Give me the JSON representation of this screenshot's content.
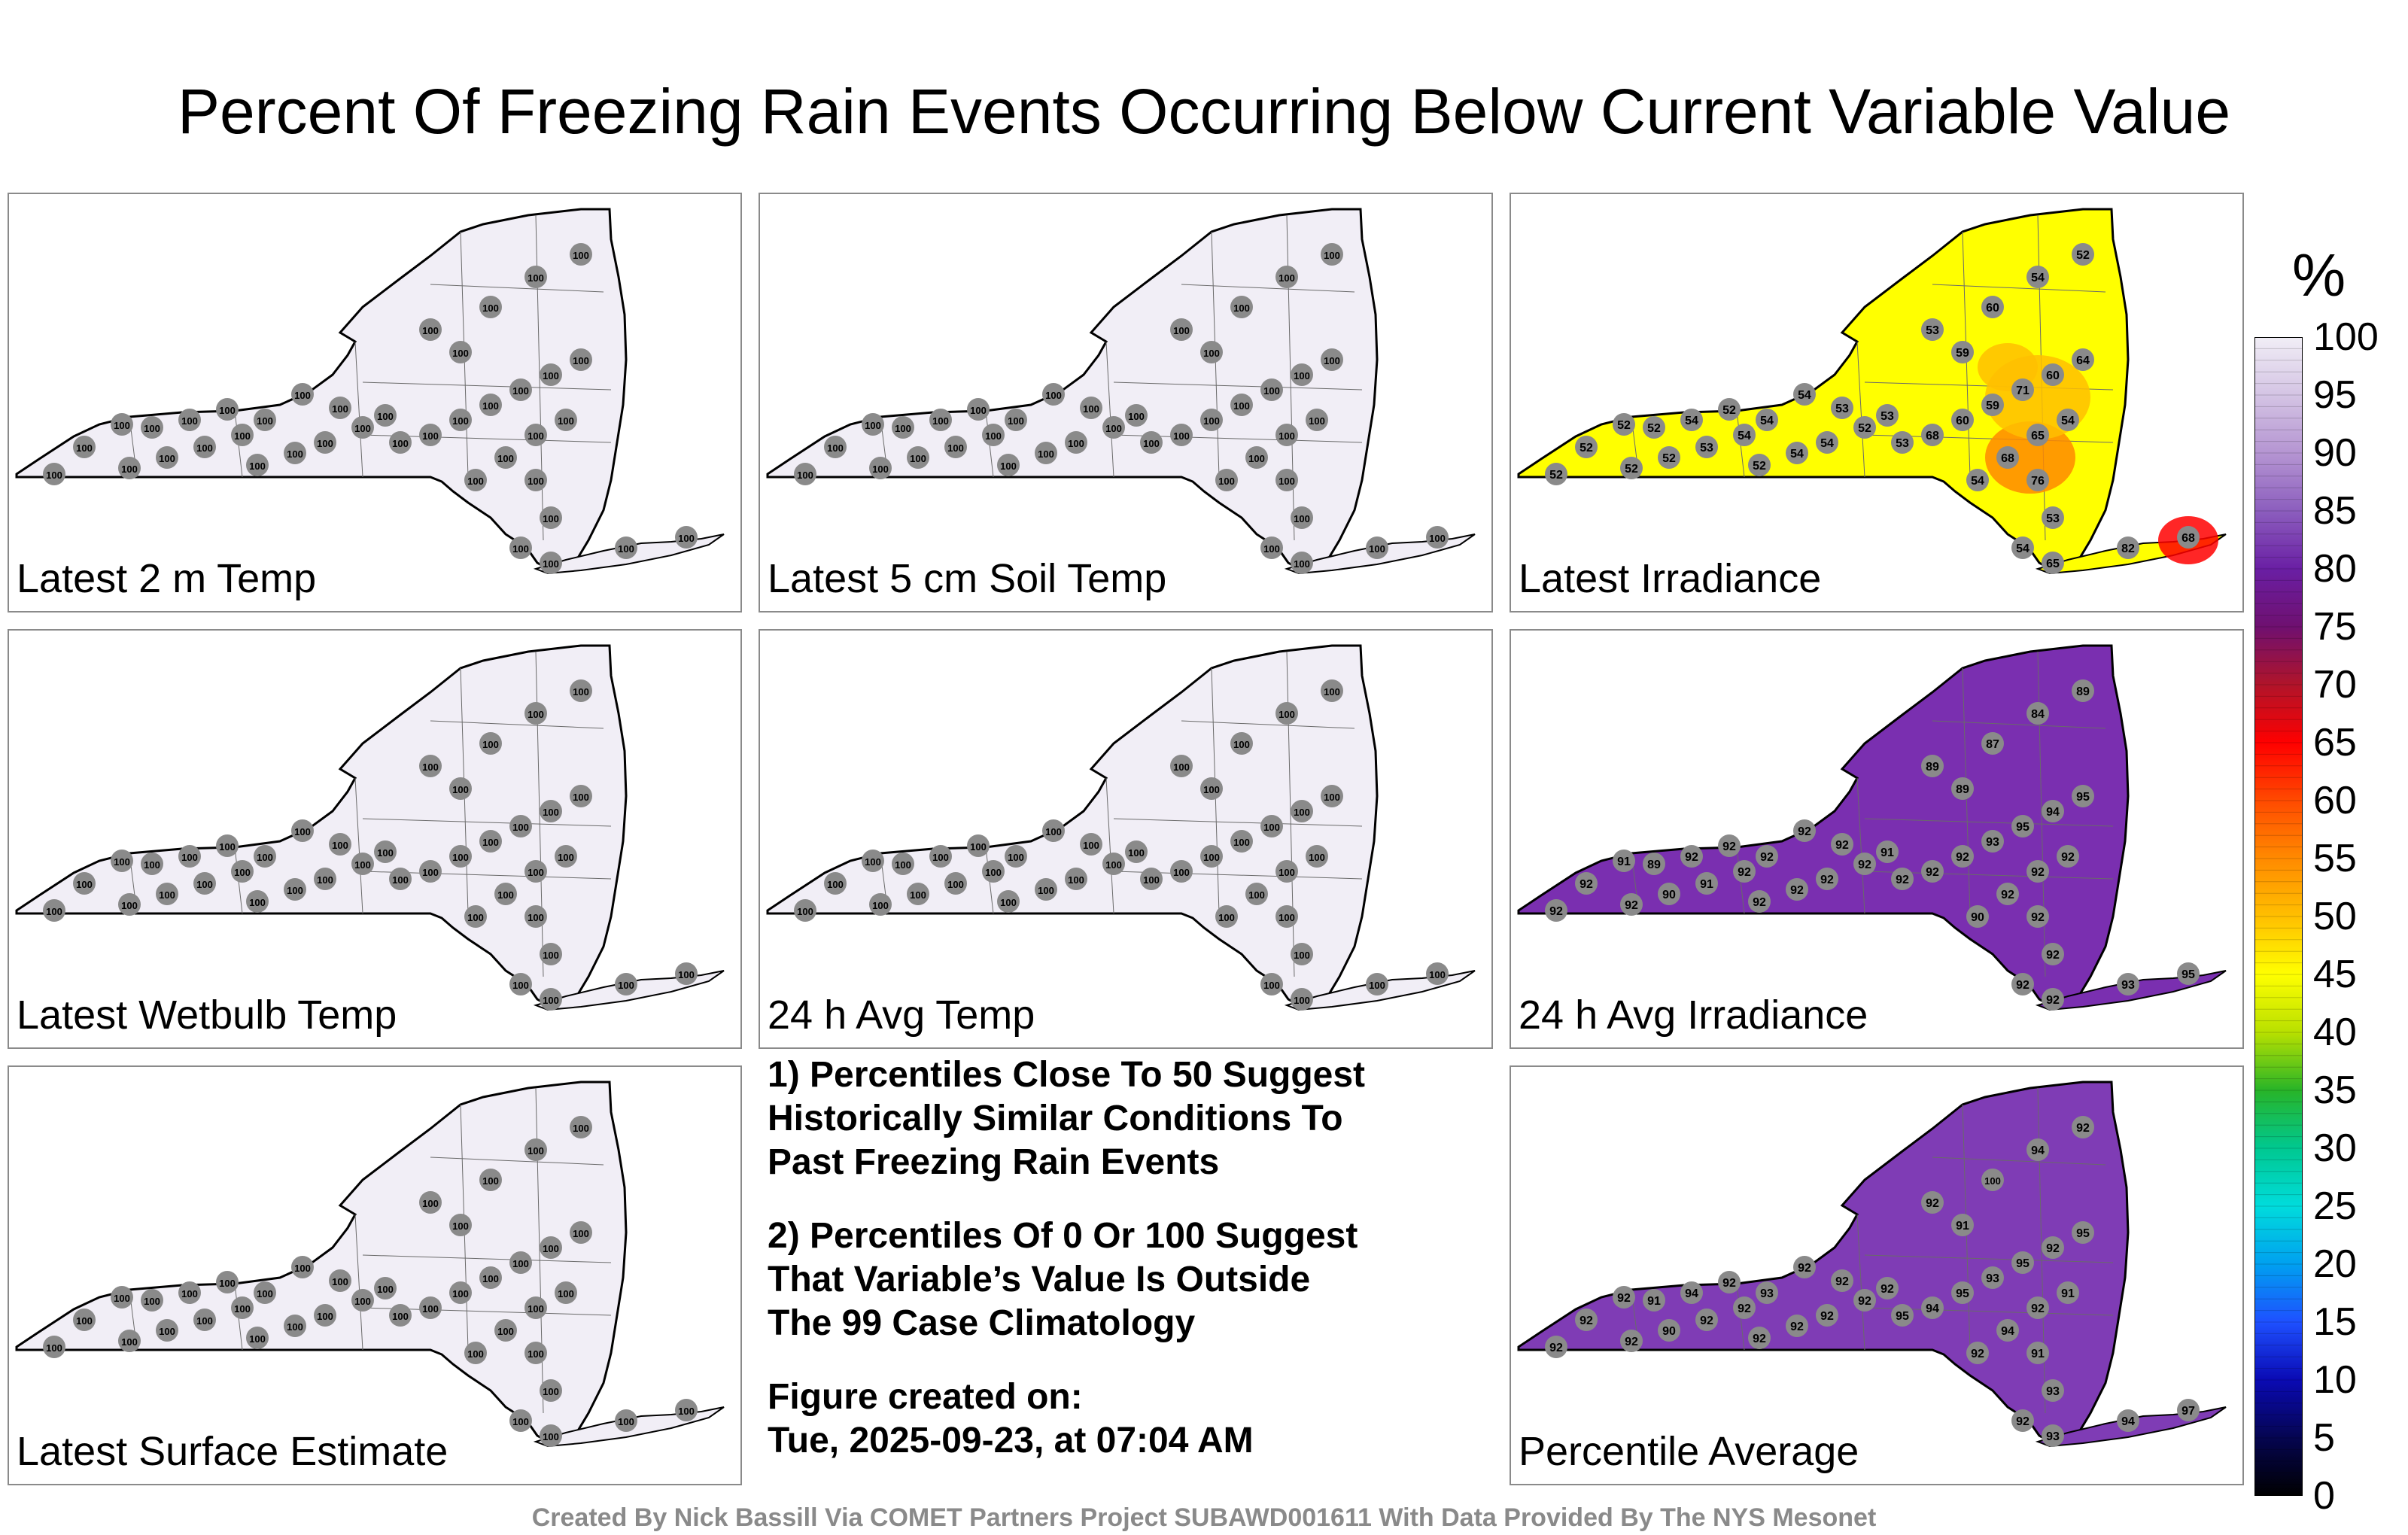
{
  "title": "Percent Of Freezing Rain Events Occurring Below Current Variable Value",
  "panels": [
    {
      "label": "Latest 2 m Temp",
      "fill": "#f1eef6",
      "values": [
        100,
        100,
        100,
        100,
        100,
        100,
        100,
        100,
        100,
        100,
        100,
        100,
        100,
        100,
        100,
        100,
        100,
        100,
        100,
        100,
        100,
        100,
        100,
        100,
        100,
        100,
        100,
        100,
        100,
        100,
        100,
        100,
        100,
        100,
        100,
        100,
        100,
        100,
        100,
        100
      ]
    },
    {
      "label": "Latest 5 cm Soil Temp",
      "fill": "#f1eef6",
      "values": [
        100,
        100,
        100,
        100,
        100,
        100,
        100,
        100,
        100,
        100,
        100,
        100,
        100,
        100,
        100,
        100,
        100,
        100,
        100,
        100,
        100,
        100,
        100,
        100,
        100,
        100,
        100,
        100,
        100,
        100,
        100,
        100,
        100,
        100,
        100,
        100,
        100,
        100,
        100,
        100
      ]
    },
    {
      "label": "Latest Irradiance",
      "fill": "#ffff00",
      "values": [
        52,
        52,
        52,
        52,
        52,
        52,
        53,
        54,
        52,
        54,
        54,
        52,
        53,
        53,
        54,
        54,
        52,
        54,
        53,
        68,
        60,
        59,
        71,
        60,
        64,
        65,
        68,
        54,
        76,
        54,
        59,
        53,
        60,
        54,
        52,
        53,
        54,
        65,
        82,
        68
      ]
    },
    {
      "label": "Latest Wetbulb Temp",
      "fill": "#f1eef6",
      "values": [
        100,
        100,
        100,
        100,
        100,
        100,
        100,
        100,
        100,
        100,
        100,
        100,
        100,
        100,
        100,
        100,
        100,
        100,
        100,
        100,
        100,
        100,
        100,
        100,
        100,
        100,
        100,
        100,
        100,
        100,
        100,
        100,
        100,
        100,
        100,
        100,
        100,
        100,
        100,
        100
      ]
    },
    {
      "label": "24 h Avg Temp",
      "fill": "#f1eef6",
      "values": [
        100,
        100,
        100,
        100,
        100,
        100,
        100,
        100,
        100,
        100,
        100,
        100,
        100,
        100,
        100,
        100,
        100,
        100,
        100,
        100,
        100,
        100,
        100,
        100,
        100,
        100,
        100,
        100,
        100,
        100,
        100,
        100,
        100,
        100,
        100,
        100,
        100,
        100,
        100,
        100
      ]
    },
    {
      "label": "24 h Avg Irradiance",
      "fill": "#7a2fb0",
      "values": [
        92,
        92,
        91,
        89,
        92,
        90,
        91,
        92,
        92,
        92,
        92,
        92,
        91,
        92,
        92,
        92,
        92,
        92,
        92,
        92,
        92,
        93,
        95,
        94,
        95,
        92,
        92,
        90,
        92,
        92,
        89,
        89,
        87,
        84,
        89,
        92,
        92,
        92,
        93,
        95
      ]
    },
    {
      "label": "Percentile Average",
      "fill": "#7f3cb5",
      "values": [
        92,
        92,
        92,
        91,
        92,
        90,
        92,
        92,
        92,
        92,
        92,
        92,
        92,
        92,
        92,
        93,
        92,
        94,
        95,
        94,
        95,
        93,
        95,
        92,
        95,
        92,
        94,
        92,
        91,
        91,
        91,
        92,
        100,
        94,
        92,
        93,
        92,
        93,
        94,
        97
      ]
    }
  ],
  "notes": {
    "line1": "1) Percentiles Close To 50 Suggest",
    "line2": "Historically Similar Conditions To",
    "line3": "Past Freezing Rain Events",
    "line4": "2) Percentiles Of 0 Or 100 Suggest",
    "line5": "That Variable’s Value Is Outside",
    "line6": "The 99 Case Climatology",
    "line7": "Figure created on:",
    "line8": "Tue, 2025-09-23, at 07:04 AM"
  },
  "colorbar": {
    "unit": "%",
    "ticks": [
      "100",
      "95",
      "90",
      "85",
      "80",
      "75",
      "70",
      "65",
      "60",
      "55",
      "50",
      "45",
      "40",
      "35",
      "30",
      "25",
      "20",
      "15",
      "10",
      "5",
      "0"
    ],
    "colors": [
      "#f1eef6",
      "#d4c4e4",
      "#b595d2",
      "#8c5ebe",
      "#6a1fa4",
      "#6f1070",
      "#b0142a",
      "#ff0000",
      "#ff4a00",
      "#ff8a00",
      "#ffbf00",
      "#ffff00",
      "#b8e000",
      "#28b428",
      "#00c890",
      "#00dcdc",
      "#00a0f0",
      "#1e50ff",
      "#0a0ab4",
      "#050550",
      "#000000"
    ]
  },
  "credit": "Created By Nick Bassill Via COMET Partners Project SUBAWD001611 With Data Provided By The NYS Mesonet"
}
